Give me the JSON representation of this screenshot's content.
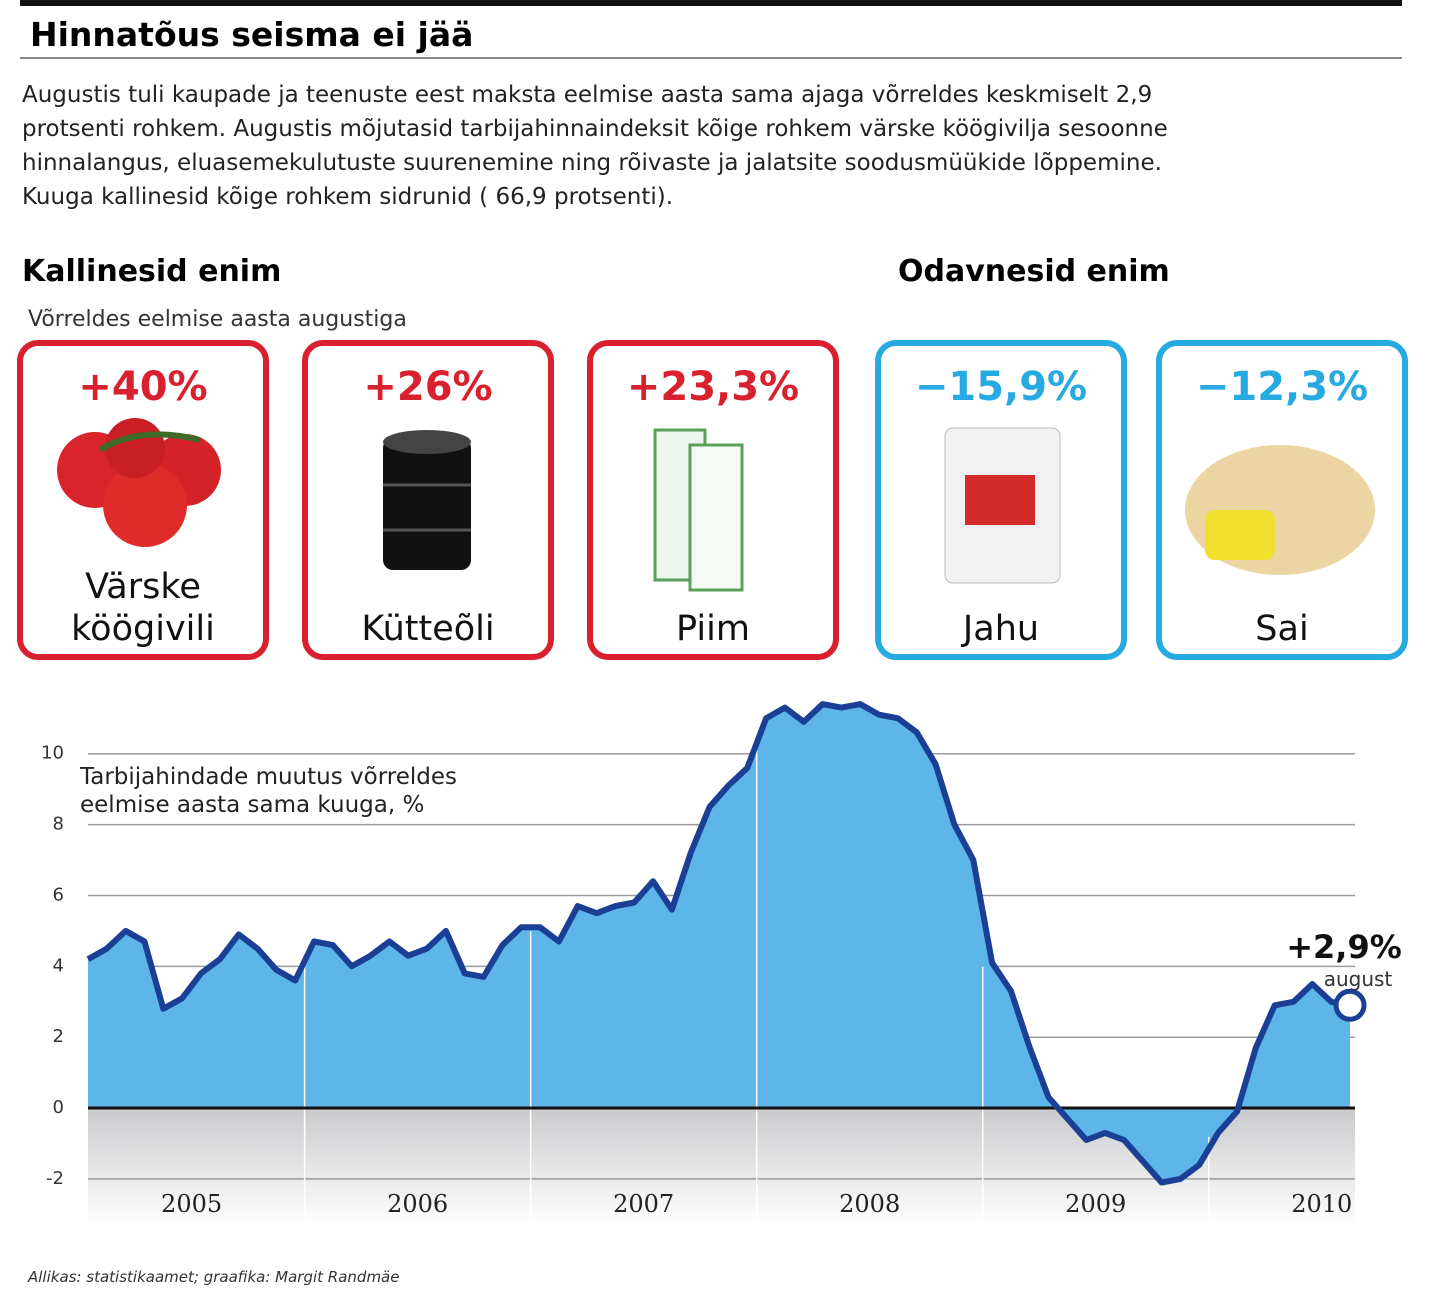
{
  "header": {
    "title": "Hinnatõus seisma ei jää",
    "intro": [
      "Augustis tuli kaupade ja teenuste eest maksta eelmise aasta sama ajaga võrreldes keskmiselt 2,9",
      "protsenti rohkem. Augustis mõjutasid tarbijahinnaindeksit kõige rohkem värske köögivilja sesoonne",
      "hinnalangus, eluasemekulutuste suurenemine ning rõivaste ja jalatsite soodusmüükide lõppemine.",
      "Kuuga kallinesid kõige rohkem sidrunid ( 66,9 protsenti)."
    ]
  },
  "rising": {
    "heading": "Kallinesid enim",
    "subheading": "Võrreldes eelmise aasta augustiga",
    "items": [
      {
        "change": "+40%",
        "name": [
          "Värske",
          "köögivili"
        ]
      },
      {
        "change": "+26%",
        "name": [
          "Kütteõli"
        ]
      },
      {
        "change": "+23,3%",
        "name": [
          "Piim"
        ]
      }
    ]
  },
  "falling": {
    "heading": "Odavnesid enim",
    "items": [
      {
        "change": "−15,9%",
        "name": [
          "Jahu"
        ]
      },
      {
        "change": "−12,3%",
        "name": [
          "Sai"
        ]
      }
    ]
  },
  "chart_data": {
    "type": "area",
    "axis_label": [
      "Tarbijahindade muutus võrreldes",
      "eelmise aasta sama kuuga, %"
    ],
    "x_labels": [
      "2005",
      "2006",
      "2007",
      "2008",
      "2009",
      "2010"
    ],
    "values": [
      4.2,
      4.5,
      5.0,
      4.7,
      2.8,
      3.1,
      3.8,
      4.2,
      4.9,
      4.5,
      3.9,
      3.6,
      4.7,
      4.6,
      4.0,
      4.3,
      4.7,
      4.3,
      4.5,
      5.0,
      3.8,
      3.7,
      4.6,
      5.1,
      5.1,
      4.7,
      5.7,
      5.5,
      5.7,
      5.8,
      6.4,
      5.6,
      7.2,
      8.5,
      9.1,
      9.6,
      11.0,
      11.3,
      10.9,
      11.4,
      11.3,
      11.4,
      11.1,
      11.0,
      10.6,
      9.7,
      8.0,
      7.0,
      4.1,
      3.3,
      1.7,
      0.3,
      -0.3,
      -0.9,
      -0.7,
      -0.9,
      -1.5,
      -2.1,
      -2.0,
      -1.6,
      -0.7,
      -0.1,
      1.7,
      2.9,
      3.0,
      3.5,
      3.0,
      2.9
    ],
    "ylim": [
      -3.3,
      11.6
    ],
    "yticks": [
      -2,
      0,
      2,
      4,
      6,
      8,
      10
    ],
    "grid": true,
    "color": "#5db5e9",
    "line_color": "#1b3f95",
    "annotation": "+2,9%",
    "annotation_sub": "august"
  },
  "footer": {
    "source": "Allikas: statistikaamet; graafika: Margit Randmäe"
  }
}
